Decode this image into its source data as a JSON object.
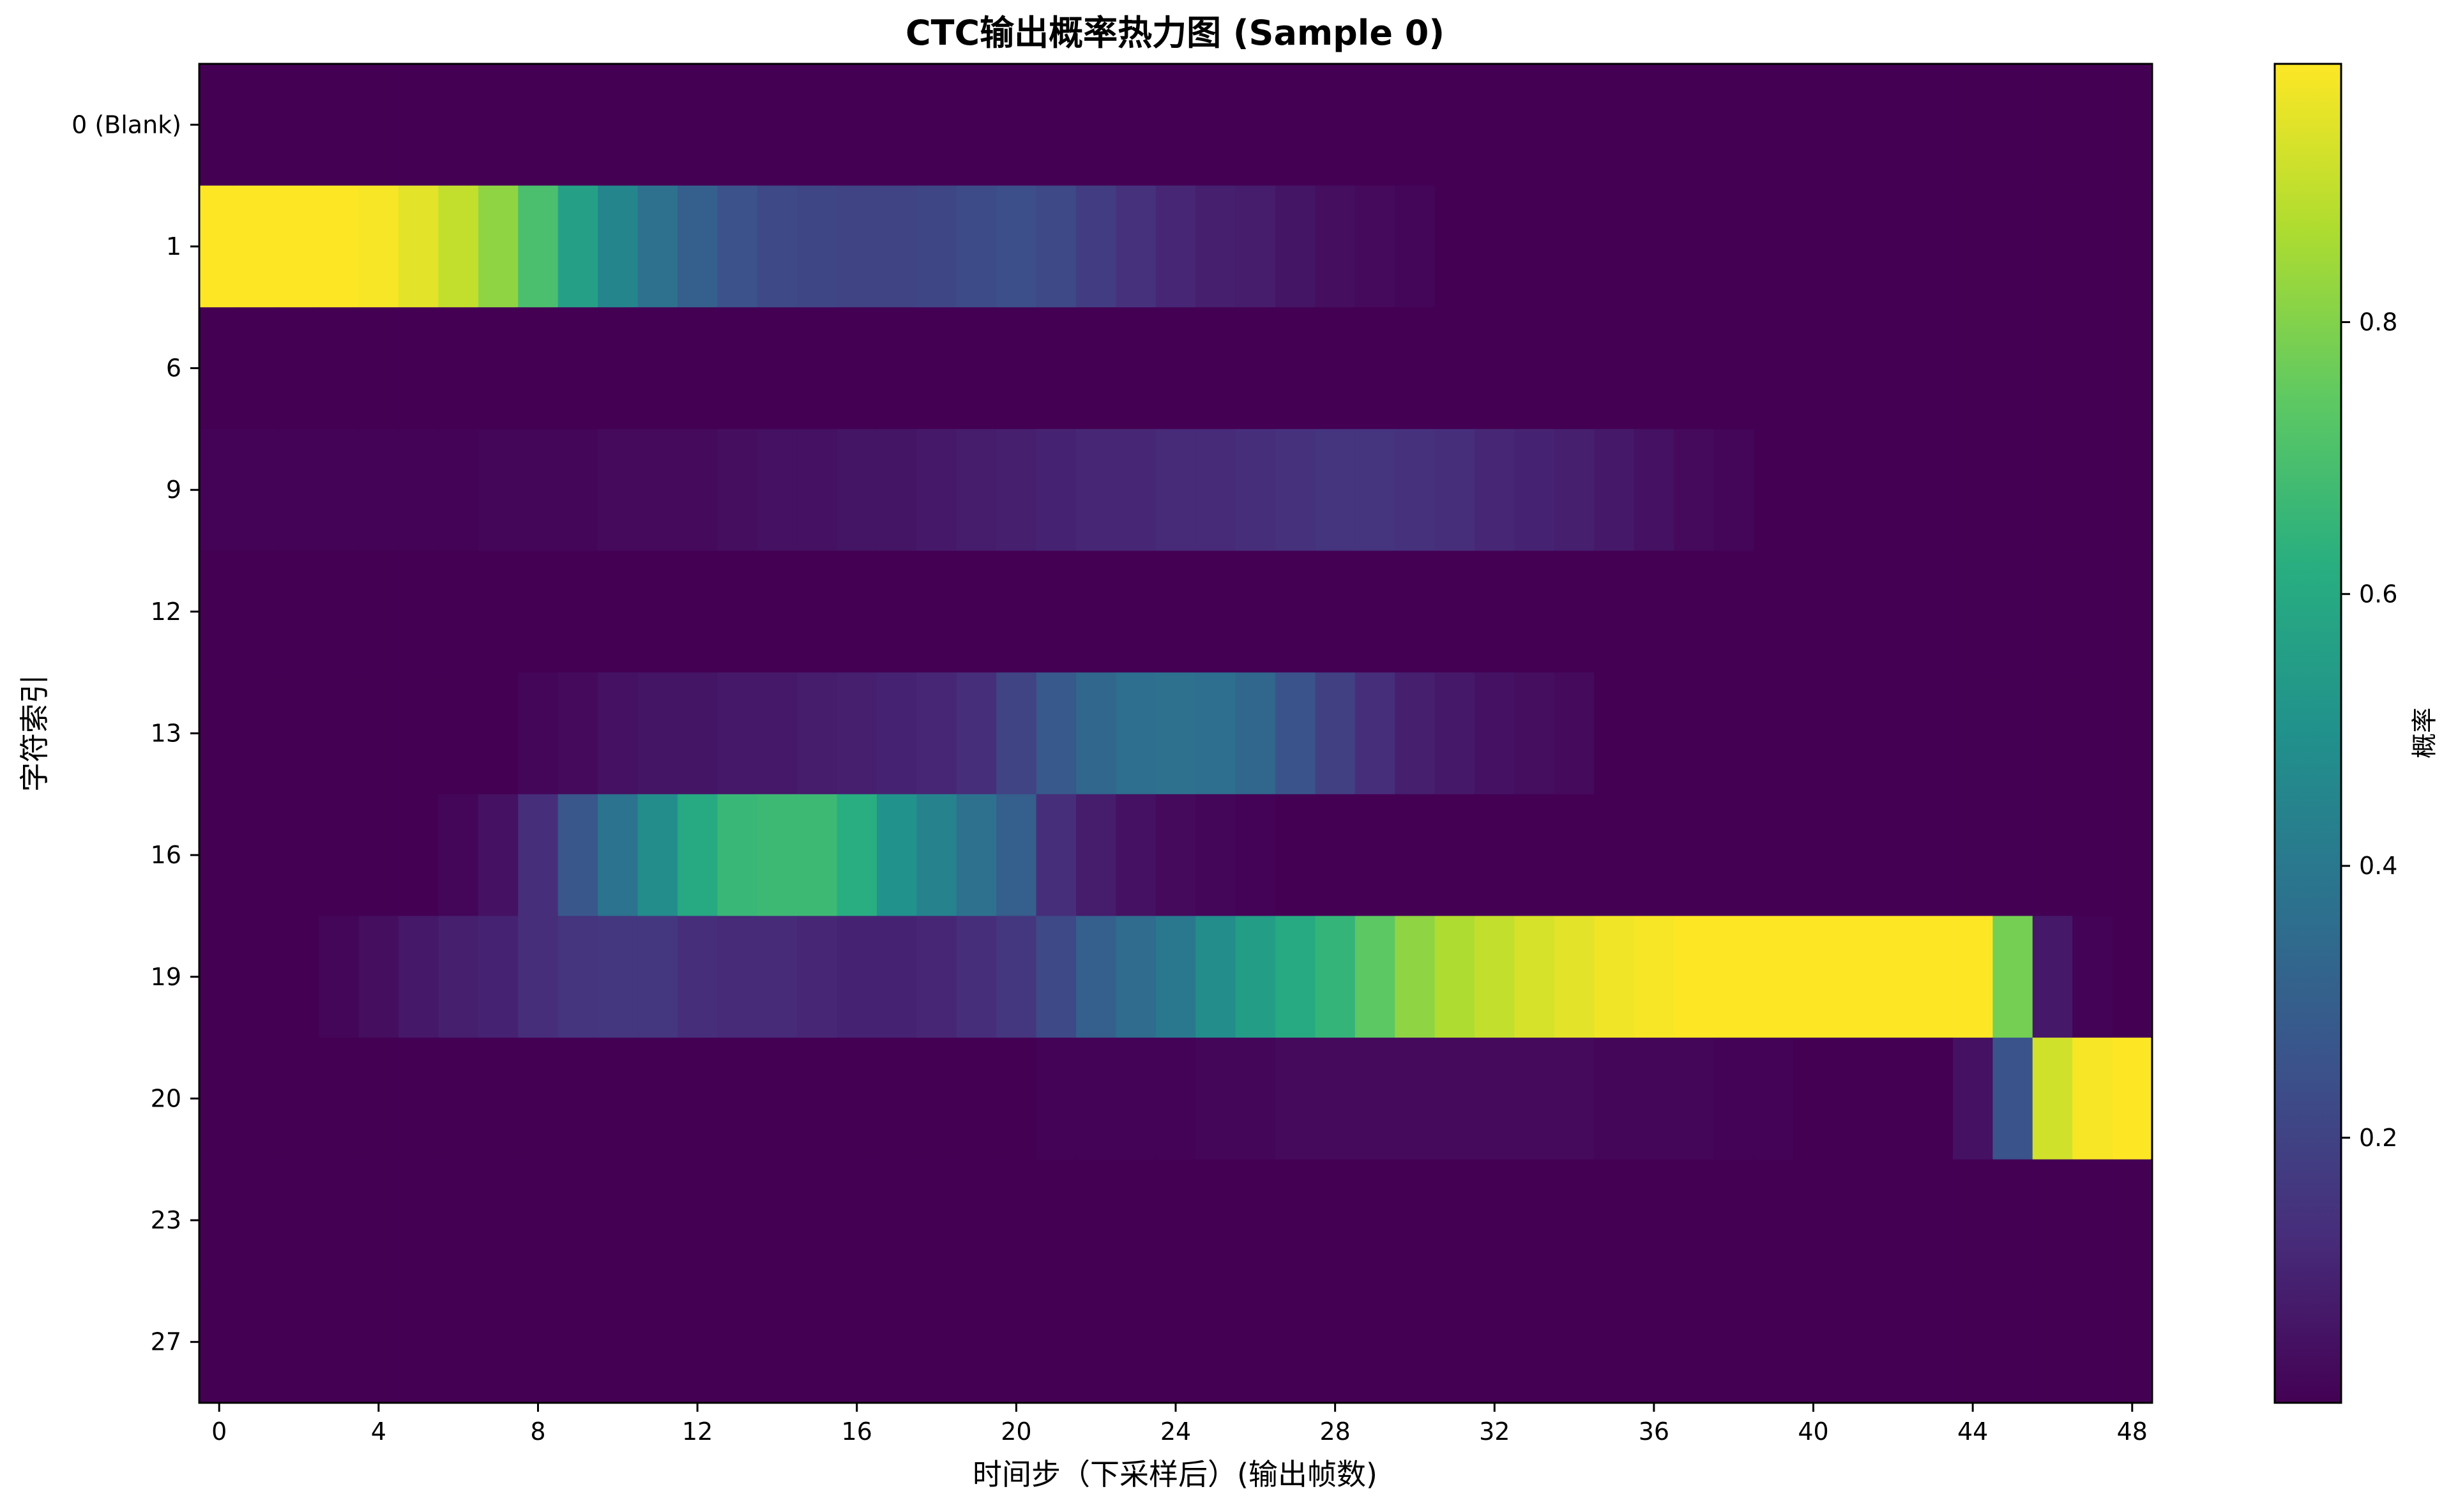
{
  "chart_data": {
    "type": "heatmap",
    "title": "CTC输出概率热力图 (Sample 0)",
    "xlabel": "时间步（下采样后）(输出帧数)",
    "ylabel": "字符索引",
    "colorbar_label": "概率",
    "colormap": "viridis",
    "x_ticks": [
      0,
      4,
      8,
      12,
      16,
      20,
      24,
      28,
      32,
      36,
      40,
      44,
      48
    ],
    "xlim": [
      -0.5,
      48.5
    ],
    "colorbar_ticks": [
      0.2,
      0.4,
      0.6,
      0.8
    ],
    "colorbar_range": [
      0.005,
      0.99
    ],
    "rows": [
      "0 (Blank)",
      "1",
      "6",
      "9",
      "12",
      "13",
      "16",
      "19",
      "20",
      "23",
      "27"
    ],
    "grid": false,
    "values": [
      [
        0,
        0,
        0,
        0,
        0,
        0,
        0,
        0,
        0,
        0,
        0,
        0,
        0,
        0,
        0,
        0,
        0,
        0,
        0,
        0,
        0,
        0,
        0,
        0,
        0,
        0,
        0,
        0,
        0,
        0,
        0,
        0,
        0,
        0,
        0,
        0,
        0,
        0,
        0,
        0,
        0,
        0,
        0,
        0,
        0,
        0,
        0,
        0,
        0
      ],
      [
        0.99,
        0.99,
        0.99,
        0.99,
        0.98,
        0.95,
        0.9,
        0.82,
        0.7,
        0.56,
        0.45,
        0.37,
        0.3,
        0.25,
        0.22,
        0.21,
        0.2,
        0.2,
        0.21,
        0.23,
        0.24,
        0.22,
        0.18,
        0.14,
        0.11,
        0.09,
        0.08,
        0.06,
        0.04,
        0.03,
        0.02,
        0,
        0,
        0,
        0,
        0,
        0,
        0,
        0,
        0,
        0,
        0,
        0,
        0,
        0,
        0,
        0,
        0,
        0
      ],
      [
        0,
        0,
        0,
        0,
        0,
        0,
        0,
        0,
        0,
        0,
        0,
        0,
        0,
        0,
        0,
        0,
        0,
        0,
        0,
        0,
        0,
        0,
        0,
        0,
        0,
        0,
        0,
        0,
        0,
        0,
        0,
        0,
        0,
        0,
        0,
        0,
        0,
        0,
        0,
        0,
        0,
        0,
        0,
        0,
        0,
        0,
        0,
        0,
        0
      ],
      [
        0.01,
        0.01,
        0.01,
        0.01,
        0.01,
        0.01,
        0.01,
        0.02,
        0.02,
        0.02,
        0.03,
        0.03,
        0.03,
        0.04,
        0.05,
        0.05,
        0.06,
        0.06,
        0.07,
        0.08,
        0.09,
        0.1,
        0.11,
        0.11,
        0.12,
        0.12,
        0.13,
        0.14,
        0.15,
        0.15,
        0.14,
        0.13,
        0.11,
        0.1,
        0.09,
        0.07,
        0.05,
        0.03,
        0.02,
        0,
        0,
        0,
        0,
        0,
        0,
        0,
        0,
        0,
        0
      ],
      [
        0,
        0,
        0,
        0,
        0,
        0,
        0,
        0,
        0,
        0,
        0,
        0,
        0,
        0,
        0,
        0,
        0,
        0,
        0,
        0,
        0,
        0,
        0,
        0,
        0,
        0,
        0,
        0,
        0,
        0,
        0,
        0,
        0,
        0,
        0,
        0,
        0,
        0,
        0,
        0,
        0,
        0,
        0,
        0,
        0,
        0,
        0,
        0,
        0
      ],
      [
        0,
        0,
        0,
        0,
        0,
        0,
        0,
        0,
        0.02,
        0.03,
        0.05,
        0.06,
        0.06,
        0.07,
        0.07,
        0.08,
        0.09,
        0.1,
        0.11,
        0.13,
        0.2,
        0.28,
        0.33,
        0.36,
        0.37,
        0.36,
        0.33,
        0.26,
        0.19,
        0.13,
        0.09,
        0.07,
        0.05,
        0.04,
        0.03,
        0,
        0,
        0,
        0,
        0,
        0,
        0,
        0,
        0,
        0,
        0,
        0,
        0,
        0
      ],
      [
        0,
        0,
        0,
        0,
        0,
        0,
        0.02,
        0.05,
        0.13,
        0.27,
        0.38,
        0.48,
        0.6,
        0.66,
        0.67,
        0.67,
        0.62,
        0.5,
        0.44,
        0.37,
        0.3,
        0.13,
        0.08,
        0.05,
        0.03,
        0.02,
        0.01,
        0,
        0,
        0,
        0,
        0,
        0,
        0,
        0,
        0,
        0,
        0,
        0,
        0,
        0,
        0,
        0,
        0,
        0,
        0,
        0,
        0,
        0
      ],
      [
        0,
        0,
        0,
        0.02,
        0.04,
        0.07,
        0.09,
        0.1,
        0.13,
        0.15,
        0.16,
        0.16,
        0.13,
        0.12,
        0.12,
        0.11,
        0.1,
        0.1,
        0.11,
        0.13,
        0.16,
        0.22,
        0.3,
        0.35,
        0.4,
        0.48,
        0.55,
        0.6,
        0.65,
        0.74,
        0.82,
        0.87,
        0.9,
        0.93,
        0.95,
        0.97,
        0.98,
        0.99,
        0.99,
        0.99,
        0.99,
        0.99,
        0.99,
        0.99,
        0.99,
        0.78,
        0.07,
        0.01,
        0
      ],
      [
        0,
        0,
        0,
        0,
        0,
        0,
        0,
        0,
        0,
        0,
        0,
        0,
        0,
        0,
        0,
        0,
        0,
        0,
        0,
        0,
        0,
        0.01,
        0.01,
        0.01,
        0.01,
        0.02,
        0.02,
        0.03,
        0.03,
        0.03,
        0.03,
        0.03,
        0.03,
        0.03,
        0.03,
        0.02,
        0.02,
        0.02,
        0.01,
        0.01,
        0,
        0,
        0,
        0,
        0.05,
        0.26,
        0.92,
        0.98,
        0.99
      ],
      [
        0,
        0,
        0,
        0,
        0,
        0,
        0,
        0,
        0,
        0,
        0,
        0,
        0,
        0,
        0,
        0,
        0,
        0,
        0,
        0,
        0,
        0,
        0,
        0,
        0,
        0,
        0,
        0,
        0,
        0,
        0,
        0,
        0,
        0,
        0,
        0,
        0,
        0,
        0,
        0,
        0,
        0,
        0,
        0,
        0,
        0,
        0,
        0,
        0
      ],
      [
        0,
        0,
        0,
        0,
        0,
        0,
        0,
        0,
        0,
        0,
        0,
        0,
        0,
        0,
        0,
        0,
        0,
        0,
        0,
        0,
        0,
        0,
        0,
        0,
        0,
        0,
        0,
        0,
        0,
        0,
        0,
        0,
        0,
        0,
        0,
        0,
        0,
        0,
        0,
        0,
        0,
        0,
        0,
        0,
        0,
        0,
        0,
        0,
        0
      ]
    ]
  }
}
